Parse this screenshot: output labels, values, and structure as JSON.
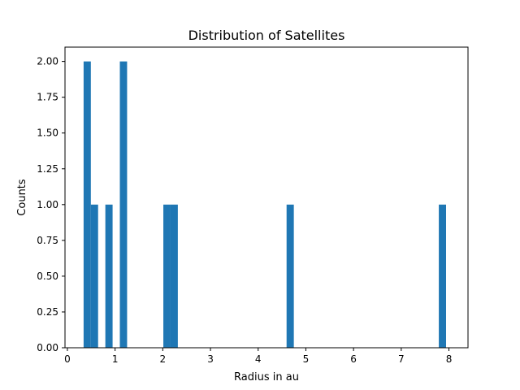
{
  "chart_data": {
    "type": "bar",
    "title": "Distribution of Satellites",
    "xlabel": "Radius in au",
    "ylabel": "Counts",
    "xlim": [
      -0.05,
      8.4
    ],
    "ylim": [
      0,
      2.1
    ],
    "grid": false,
    "bar_color": "#1f77b4",
    "bin_width": 0.152,
    "bins": [
      {
        "x_start": 0.34,
        "value": 2
      },
      {
        "x_start": 0.492,
        "value": 1
      },
      {
        "x_start": 0.796,
        "value": 1
      },
      {
        "x_start": 1.1,
        "value": 2
      },
      {
        "x_start": 2.012,
        "value": 1
      },
      {
        "x_start": 2.164,
        "value": 1
      },
      {
        "x_start": 4.596,
        "value": 1
      },
      {
        "x_start": 7.788,
        "value": 1
      }
    ],
    "xticks": [
      0,
      1,
      2,
      3,
      4,
      5,
      6,
      7,
      8
    ],
    "xtick_labels": [
      "0",
      "1",
      "2",
      "3",
      "4",
      "5",
      "6",
      "7",
      "8"
    ],
    "yticks": [
      0,
      0.25,
      0.5,
      0.75,
      1.0,
      1.25,
      1.5,
      1.75,
      2.0
    ],
    "ytick_labels": [
      "0.00",
      "0.25",
      "0.50",
      "0.75",
      "1.00",
      "1.25",
      "1.50",
      "1.75",
      "2.00"
    ]
  }
}
